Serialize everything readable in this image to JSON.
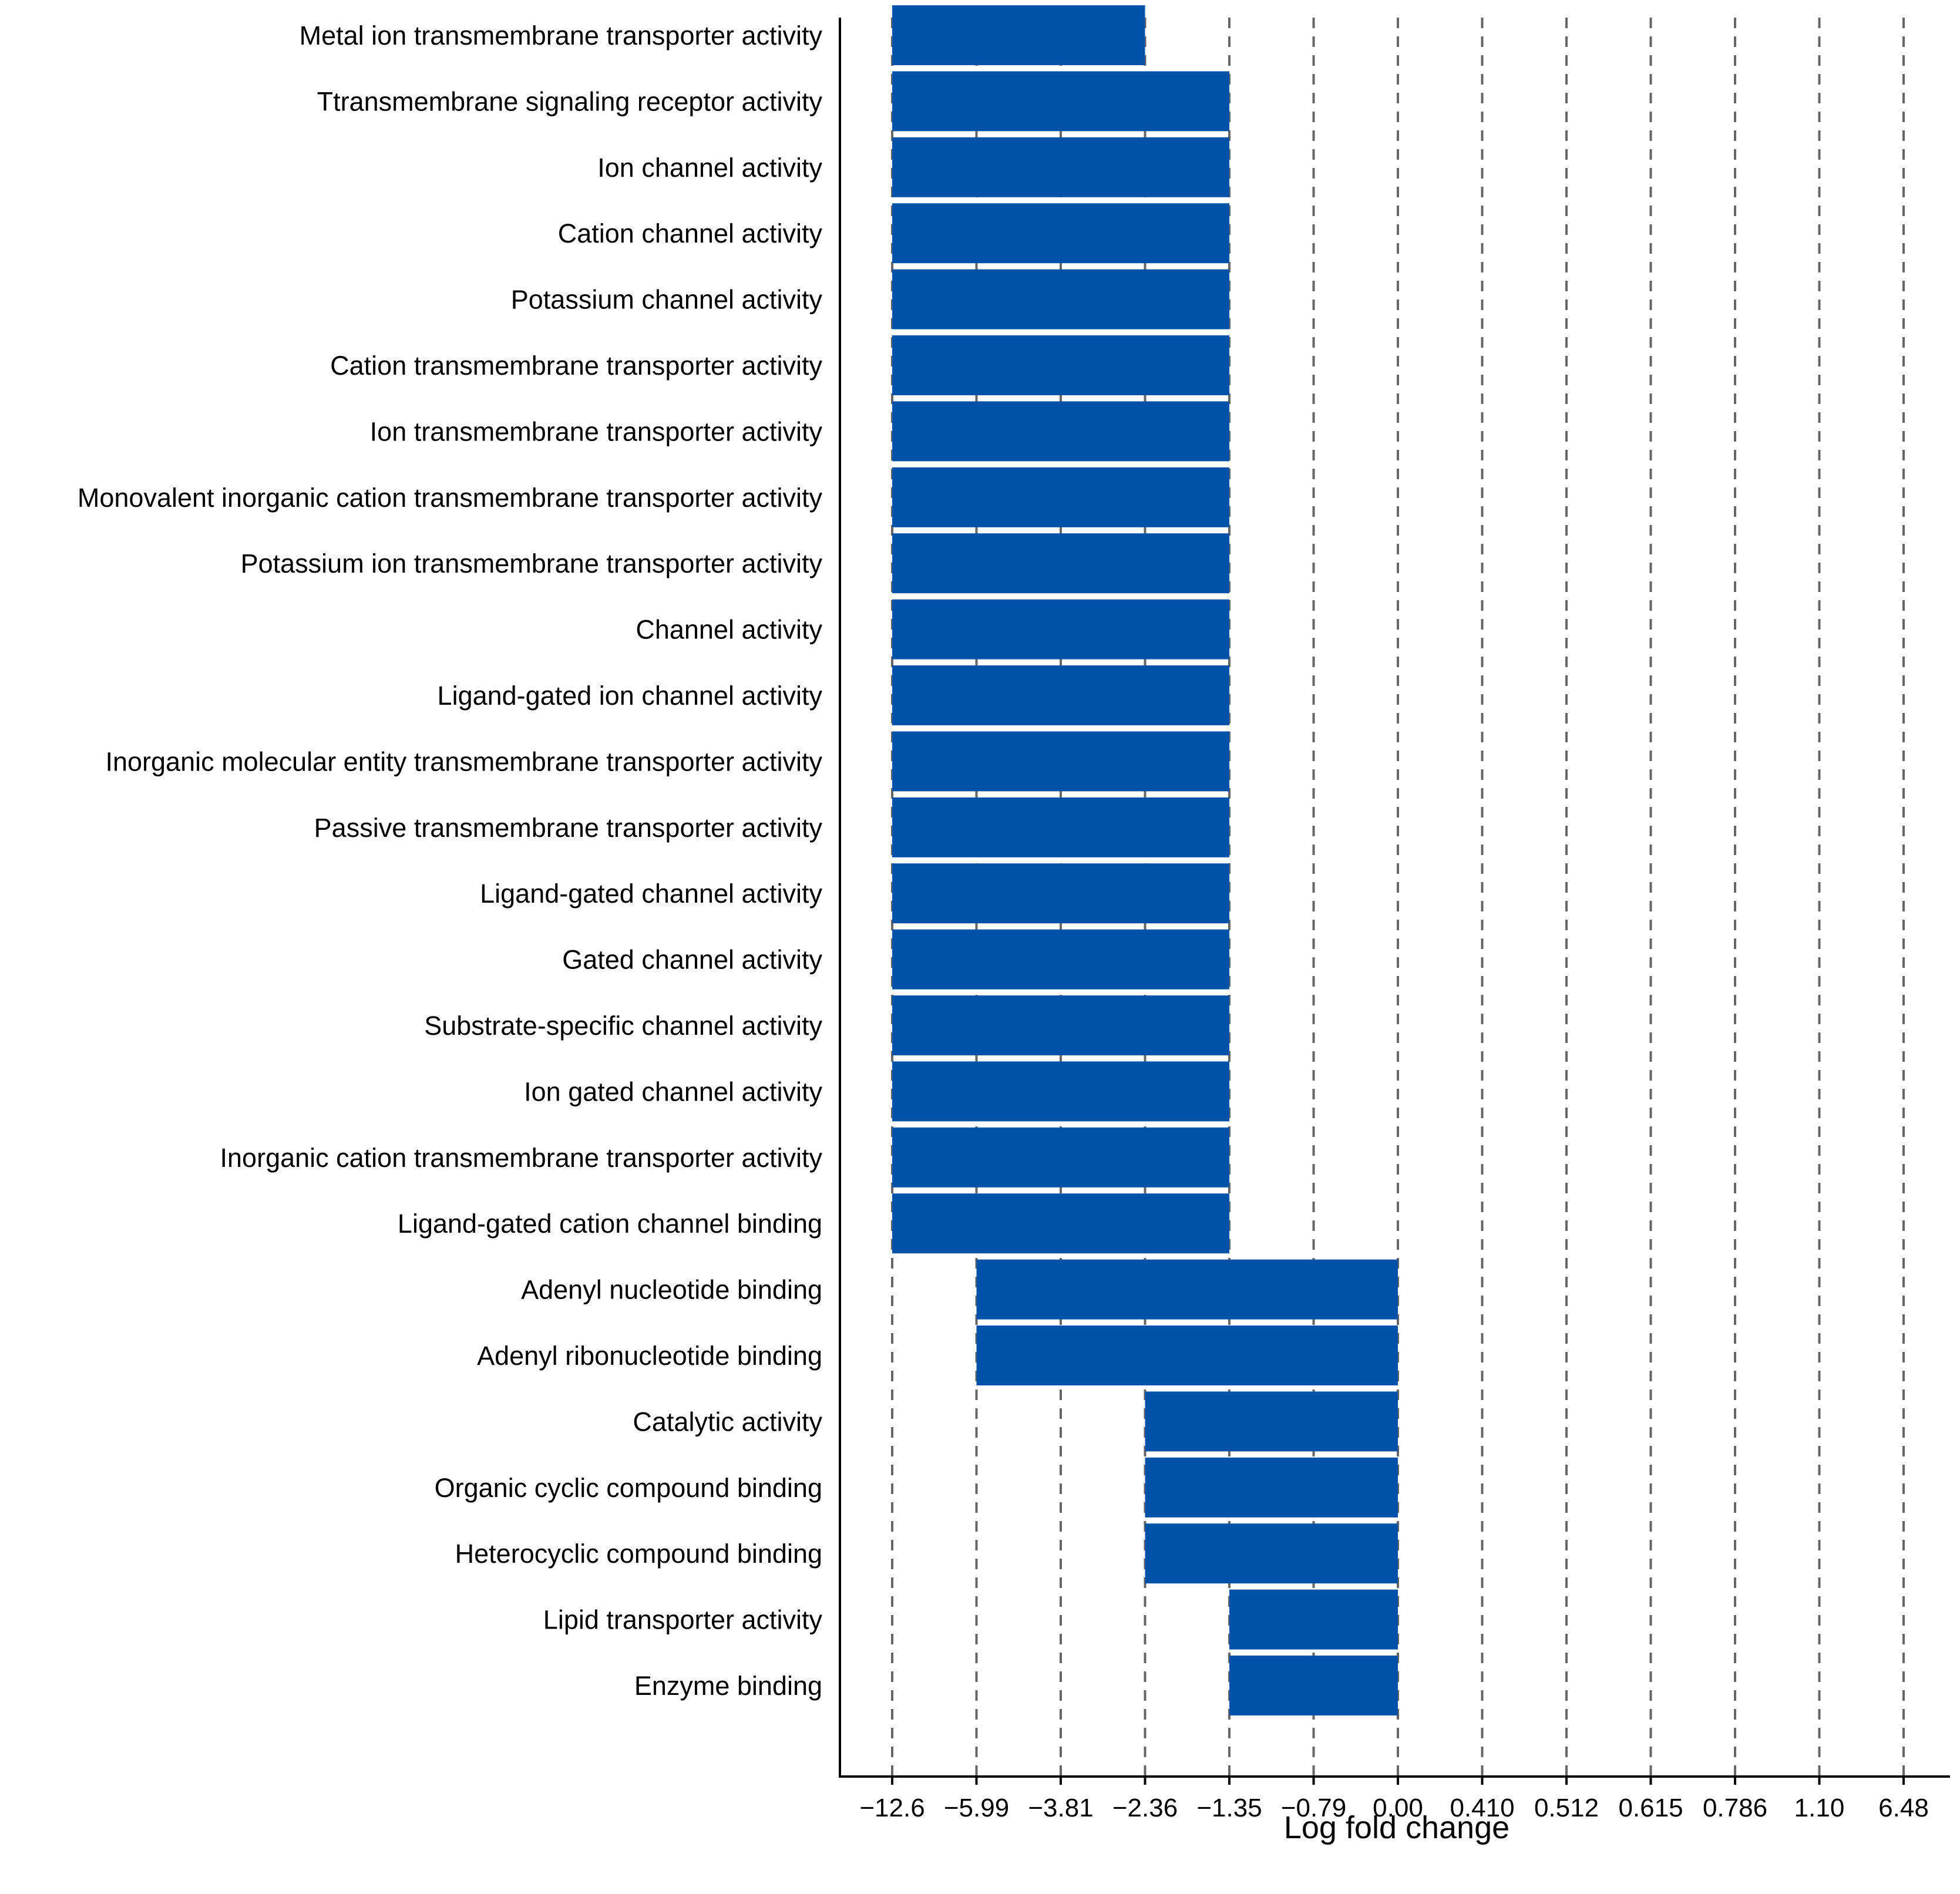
{
  "chart_data": {
    "type": "bar",
    "orientation": "horizontal",
    "title": "",
    "xlabel": "Log fold change",
    "ylabel": "",
    "x_scale": "categorical-ticks",
    "x_ticks": [
      "−12.6",
      "−5.99",
      "−3.81",
      "−2.36",
      "−1.35",
      "−0.79",
      "0.00",
      "0.410",
      "0.512",
      "0.615",
      "0.786",
      "1.10",
      "6.48"
    ],
    "grid": "vertical dashed lines at each tick",
    "bar_color": "#0051a8",
    "grid_color": "#666666",
    "categories": [
      "Metal ion transmembrane transporter activity",
      "Ttransmembrane signaling receptor activity",
      "Ion channel activity",
      "Cation channel activity",
      "Potassium channel activity",
      "Cation transmembrane transporter activity",
      "Ion transmembrane transporter activity",
      "Monovalent inorganic cation transmembrane transporter activity",
      "Potassium ion transmembrane transporter activity",
      "Channel activity",
      "Ligand-gated ion channel activity",
      "Inorganic molecular entity transmembrane transporter activity",
      "Passive transmembrane transporter activity",
      "Ligand-gated channel activity",
      "Gated channel activity",
      "Substrate-specific channel activity",
      "Ion gated channel activity",
      "Inorganic cation transmembrane transporter activity",
      "Ligand-gated cation channel binding",
      "Adenyl nucleotide binding",
      "Adenyl ribonucleotide binding",
      "Catalytic activity",
      "Organic cyclic compound binding",
      "Heterocyclic compound binding",
      "Lipid transporter activity",
      "Enzyme binding"
    ],
    "ranges": [
      [
        "−12.6",
        "−2.36"
      ],
      [
        "−12.6",
        "−1.35"
      ],
      [
        "−12.6",
        "−1.35"
      ],
      [
        "−12.6",
        "−1.35"
      ],
      [
        "−12.6",
        "−1.35"
      ],
      [
        "−12.6",
        "−1.35"
      ],
      [
        "−12.6",
        "−1.35"
      ],
      [
        "−12.6",
        "−1.35"
      ],
      [
        "−12.6",
        "−1.35"
      ],
      [
        "−12.6",
        "−1.35"
      ],
      [
        "−12.6",
        "−1.35"
      ],
      [
        "−12.6",
        "−1.35"
      ],
      [
        "−12.6",
        "−1.35"
      ],
      [
        "−12.6",
        "−1.35"
      ],
      [
        "−12.6",
        "−1.35"
      ],
      [
        "−12.6",
        "−1.35"
      ],
      [
        "−12.6",
        "−1.35"
      ],
      [
        "−12.6",
        "−1.35"
      ],
      [
        "−12.6",
        "−1.35"
      ],
      [
        "−5.99",
        "0.00"
      ],
      [
        "−5.99",
        "0.00"
      ],
      [
        "−2.36",
        "0.00"
      ],
      [
        "−2.36",
        "0.00"
      ],
      [
        "−2.36",
        "0.00"
      ],
      [
        "−1.35",
        "0.00"
      ],
      [
        "−1.35",
        "0.00"
      ]
    ]
  }
}
